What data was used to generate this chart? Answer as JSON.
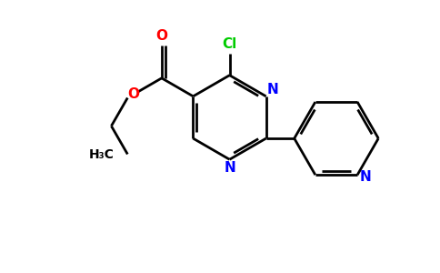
{
  "background_color": "#ffffff",
  "bond_color": "#000000",
  "N_color": "#0000ff",
  "O_color": "#ff0000",
  "Cl_color": "#00cc00",
  "line_width": 2.0,
  "figsize": [
    4.84,
    3.0
  ],
  "dpi": 100,
  "xlim": [
    -1.0,
    9.5
  ],
  "ylim": [
    -1.5,
    5.5
  ]
}
